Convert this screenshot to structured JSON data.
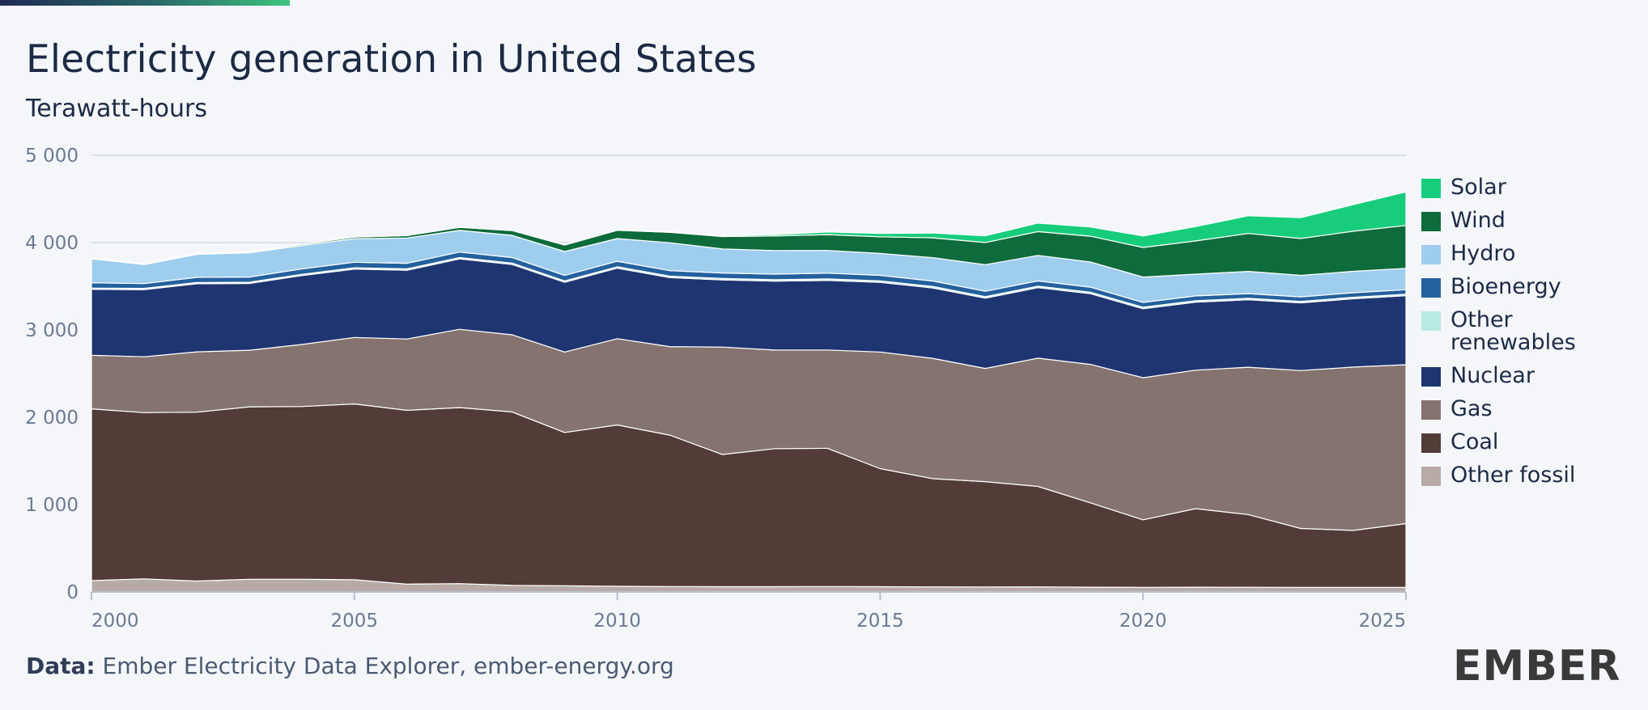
{
  "header": {
    "title": "Electricity generation in United States",
    "subtitle": "Terawatt-hours"
  },
  "footer": {
    "source_label": "Data:",
    "source_text": "Ember Electricity Data Explorer, ember-energy.org",
    "logo_text": "EMBER"
  },
  "colors": {
    "Other fossil": "#b8aaa6",
    "Coal": "#533c37",
    "Gas": "#85736f",
    "Nuclear": "#1f3572",
    "Other renewables": "#b9ebe4",
    "Bioenergy": "#24609e",
    "Hydro": "#9ecdee",
    "Wind": "#0e6b3b",
    "Solar": "#17cd7b",
    "accent": "#3dc47c"
  },
  "chart_data": {
    "type": "area",
    "stacked": true,
    "title": "Electricity generation in United States",
    "ylabel": "Terawatt-hours",
    "xlabel": "",
    "xlim": [
      2000,
      2025
    ],
    "ylim": [
      0,
      5000
    ],
    "x_ticks": [
      2000,
      2005,
      2010,
      2015,
      2020,
      2025
    ],
    "y_ticks": [
      0,
      1000,
      2000,
      3000,
      4000,
      5000
    ],
    "y_tick_labels": [
      "0",
      "1 000",
      "2 000",
      "3 000",
      "4 000",
      "5 000"
    ],
    "grid": "horizontal",
    "legend_position": "right",
    "x": [
      2000,
      2001,
      2002,
      2003,
      2004,
      2005,
      2006,
      2007,
      2008,
      2009,
      2010,
      2011,
      2012,
      2013,
      2014,
      2015,
      2016,
      2017,
      2018,
      2019,
      2020,
      2021,
      2022,
      2023,
      2024,
      2025
    ],
    "series": [
      {
        "name": "Other fossil",
        "values": [
          130,
          150,
          125,
          145,
          145,
          140,
          90,
          95,
          75,
          70,
          65,
          62,
          60,
          60,
          62,
          60,
          58,
          57,
          58,
          55,
          53,
          55,
          54,
          52,
          52,
          52
        ]
      },
      {
        "name": "Coal",
        "values": [
          1966,
          1904,
          1933,
          1974,
          1978,
          2013,
          1990,
          2016,
          1986,
          1756,
          1847,
          1733,
          1514,
          1581,
          1582,
          1352,
          1239,
          1206,
          1150,
          965,
          773,
          899,
          832,
          675,
          653,
          730
        ]
      },
      {
        "name": "Gas",
        "values": [
          614,
          639,
          691,
          649,
          710,
          761,
          816,
          896,
          883,
          921,
          988,
          1014,
          1230,
          1128,
          1126,
          1335,
          1378,
          1296,
          1469,
          1586,
          1627,
          1586,
          1687,
          1808,
          1870,
          1820
        ]
      },
      {
        "name": "Nuclear",
        "values": [
          754,
          769,
          780,
          764,
          789,
          782,
          787,
          806,
          806,
          799,
          807,
          790,
          769,
          789,
          797,
          797,
          806,
          805,
          807,
          809,
          790,
          778,
          772,
          775,
          782,
          790
        ]
      },
      {
        "name": "Other renewables",
        "values": [
          15,
          14,
          14,
          14,
          15,
          16,
          16,
          16,
          16,
          16,
          16,
          17,
          17,
          17,
          17,
          17,
          17,
          17,
          17,
          17,
          17,
          17,
          17,
          17,
          17,
          17
        ]
      },
      {
        "name": "Bioenergy",
        "values": [
          61,
          55,
          59,
          60,
          62,
          63,
          64,
          63,
          63,
          62,
          63,
          63,
          62,
          64,
          66,
          64,
          62,
          62,
          60,
          58,
          55,
          55,
          54,
          52,
          52,
          52
        ]
      },
      {
        "name": "Hydro",
        "values": [
          275,
          217,
          264,
          276,
          268,
          270,
          290,
          248,
          254,
          274,
          260,
          319,
          276,
          269,
          260,
          251,
          268,
          304,
          293,
          288,
          291,
          249,
          254,
          246,
          245,
          245
        ]
      },
      {
        "name": "Wind",
        "values": [
          6,
          7,
          11,
          11,
          14,
          18,
          27,
          35,
          55,
          74,
          95,
          120,
          141,
          168,
          182,
          191,
          227,
          254,
          272,
          295,
          338,
          380,
          435,
          422,
          460,
          490
        ]
      },
      {
        "name": "Solar",
        "values": [
          1,
          1,
          1,
          1,
          1,
          1,
          1,
          1,
          2,
          3,
          4,
          6,
          12,
          16,
          29,
          39,
          54,
          77,
          97,
          107,
          132,
          164,
          202,
          238,
          303,
          385
        ]
      }
    ],
    "legend_order": [
      "Solar",
      "Wind",
      "Hydro",
      "Bioenergy",
      "Other renewables",
      "Nuclear",
      "Gas",
      "Coal",
      "Other fossil"
    ]
  }
}
